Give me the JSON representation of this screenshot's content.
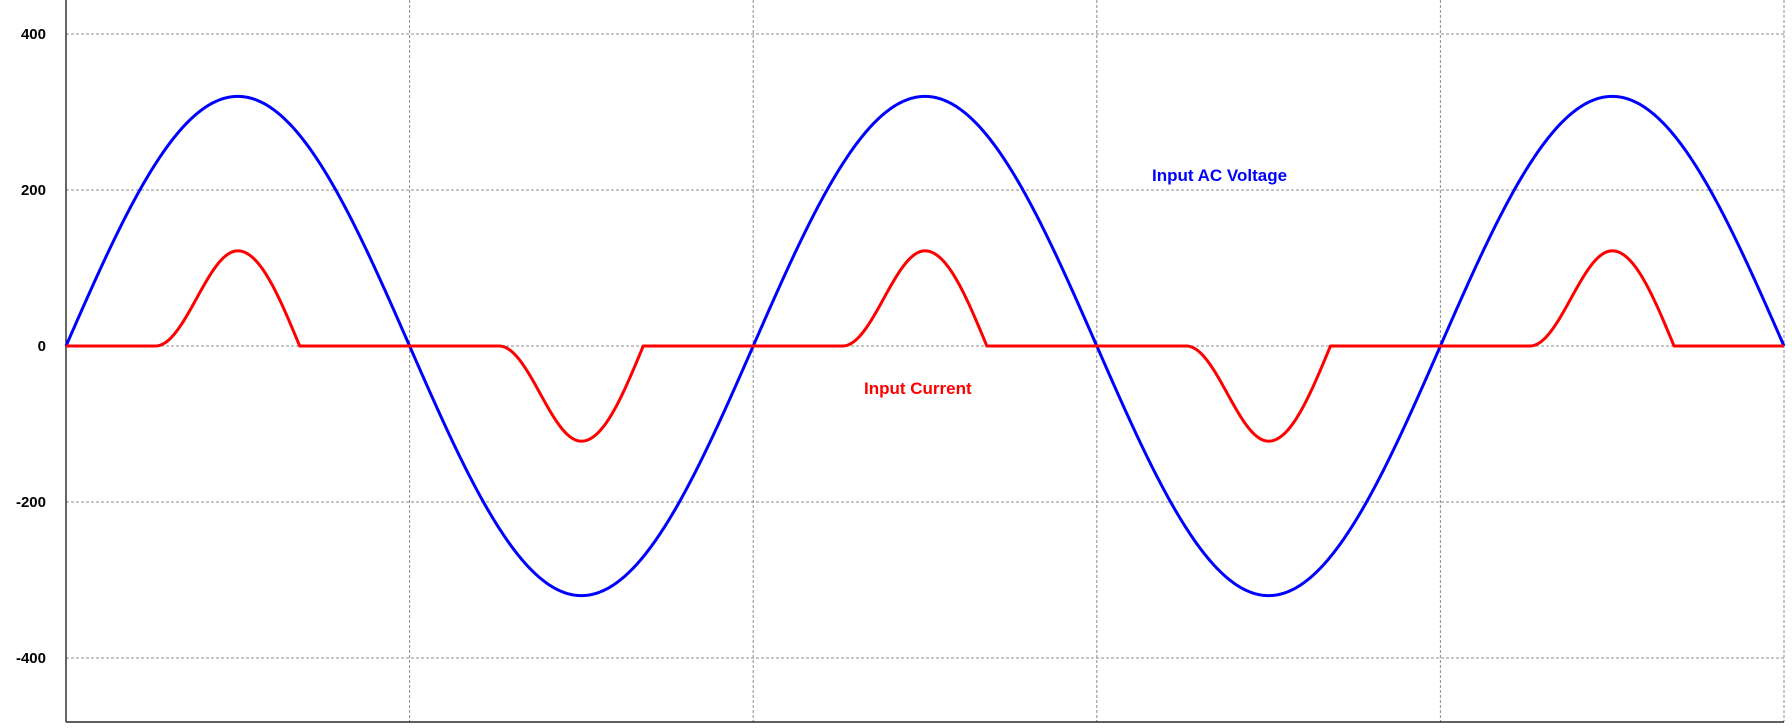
{
  "chart_data": {
    "type": "line",
    "ylim": [
      -480,
      400
    ],
    "y_ticks": [
      400,
      200,
      0,
      -200,
      -400
    ],
    "y_tick_labels": [
      "400",
      "200",
      "0",
      "-200",
      "-400"
    ],
    "xlim": [
      0,
      2.5
    ],
    "x_gridlines": [
      0.5,
      1.0,
      1.5,
      2.0
    ],
    "grid": true,
    "series": [
      {
        "name": "Input AC Voltage",
        "color": "#0000ff",
        "shape": "sine",
        "amplitude": 320,
        "cycles": 2.5
      },
      {
        "name": "Input Current",
        "color": "#ff0000",
        "shape": "pulse",
        "amplitude": 122,
        "pulse_start_phase": 0.26,
        "pulse_end_phase": 0.68
      }
    ]
  }
}
